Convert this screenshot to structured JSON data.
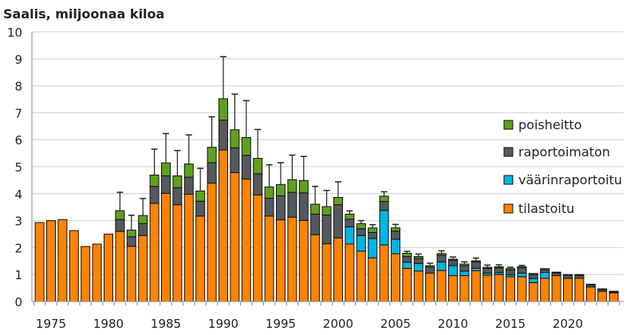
{
  "chart_data": {
    "type": "bar",
    "stacked": true,
    "title": "Saalis, miljoonaa kiloa",
    "xlabel": "",
    "ylabel": "",
    "ylim": [
      0,
      10
    ],
    "yticks": [
      0,
      1,
      2,
      3,
      4,
      5,
      6,
      7,
      8,
      9,
      10
    ],
    "xtick_labels": [
      "1975",
      "1980",
      "1985",
      "1990",
      "1995",
      "2000",
      "2005",
      "2010",
      "2015",
      "2020"
    ],
    "grid": "horizontal",
    "legend_position": "right",
    "categories": [
      1974,
      1975,
      1976,
      1977,
      1978,
      1979,
      1980,
      1981,
      1982,
      1983,
      1984,
      1985,
      1986,
      1987,
      1988,
      1989,
      1990,
      1991,
      1992,
      1993,
      1994,
      1995,
      1996,
      1997,
      1998,
      1999,
      2000,
      2001,
      2002,
      2003,
      2004,
      2005,
      2006,
      2007,
      2008,
      2009,
      2010,
      2011,
      2012,
      2013,
      2014,
      2015,
      2016,
      2017,
      2018,
      2019,
      2020,
      2021,
      2022,
      2023,
      2024
    ],
    "series": [
      {
        "name": "tilastoitu",
        "color": "#ff8300",
        "values": [
          2.93,
          3.0,
          3.04,
          2.63,
          2.04,
          2.13,
          2.5,
          2.6,
          2.05,
          2.45,
          3.64,
          4.01,
          3.59,
          3.98,
          3.17,
          4.39,
          5.62,
          4.78,
          4.54,
          3.95,
          3.17,
          3.03,
          3.13,
          3.01,
          2.48,
          2.14,
          2.36,
          2.13,
          1.87,
          1.62,
          2.1,
          1.77,
          1.23,
          1.13,
          1.05,
          1.15,
          0.96,
          0.96,
          1.14,
          0.98,
          1.0,
          0.92,
          0.92,
          0.7,
          0.86,
          0.96,
          0.86,
          0.86,
          0.54,
          0.38,
          0.32
        ]
      },
      {
        "name": "väärinraportoitu",
        "color": "#00b4e4",
        "values": [
          0,
          0,
          0,
          0,
          0,
          0,
          0,
          0,
          0,
          0,
          0,
          0,
          0,
          0,
          0,
          0,
          0,
          0,
          0,
          0,
          0,
          0,
          0,
          0,
          0,
          0,
          0,
          0.64,
          0.58,
          0.72,
          1.28,
          0.54,
          0.23,
          0.28,
          0,
          0.32,
          0.37,
          0.17,
          0.09,
          0.07,
          0.07,
          0.07,
          0.13,
          0.15,
          0.22,
          0,
          0,
          0,
          0,
          0,
          0
        ]
      },
      {
        "name": "raportoimaton",
        "color": "#55595d",
        "values": [
          0,
          0,
          0,
          0,
          0,
          0,
          0,
          0.44,
          0.35,
          0.44,
          0.63,
          0.65,
          0.63,
          0.63,
          0.55,
          0.76,
          1.11,
          0.92,
          0.88,
          0.79,
          0.66,
          0.89,
          0.92,
          1.02,
          0.76,
          1.07,
          1.23,
          0.28,
          0.25,
          0.22,
          0.33,
          0.3,
          0.21,
          0.19,
          0.23,
          0.25,
          0.2,
          0.2,
          0.24,
          0.18,
          0.18,
          0.18,
          0.2,
          0.15,
          0.1,
          0.1,
          0.12,
          0.11,
          0.08,
          0.07,
          0.04
        ]
      },
      {
        "name": "poisheitto",
        "color": "#5fa01c",
        "values": [
          0,
          0,
          0,
          0,
          0,
          0,
          0,
          0.33,
          0.25,
          0.3,
          0.42,
          0.48,
          0.44,
          0.49,
          0.38,
          0.57,
          0.79,
          0.67,
          0.66,
          0.57,
          0.42,
          0.42,
          0.47,
          0.46,
          0.37,
          0.31,
          0.27,
          0.19,
          0.19,
          0.17,
          0.2,
          0.12,
          0.12,
          0.07,
          0.05,
          0.06,
          0.04,
          0.06,
          0.04,
          0.04,
          0.04,
          0.05,
          0.04,
          0.04,
          0.04,
          0.03,
          0.02,
          0.03,
          0.02,
          0.02,
          0.02
        ]
      }
    ],
    "error_upper": [
      null,
      null,
      null,
      null,
      null,
      null,
      null,
      4.05,
      3.2,
      3.82,
      5.65,
      6.23,
      5.6,
      6.18,
      4.94,
      6.85,
      9.08,
      7.69,
      7.45,
      6.38,
      5.07,
      5.15,
      5.43,
      5.38,
      4.27,
      4.12,
      4.44,
      3.36,
      3.0,
      2.85,
      4.07,
      2.86,
      1.86,
      1.76,
      1.42,
      1.88,
      1.65,
      1.47,
      1.61,
      1.35,
      1.36,
      1.27,
      1.34,
      null,
      null,
      null,
      null,
      null,
      null,
      null,
      null
    ],
    "legend_order": [
      "poisheitto",
      "raportoimaton",
      "väärinraportoitu",
      "tilastoitu"
    ]
  }
}
